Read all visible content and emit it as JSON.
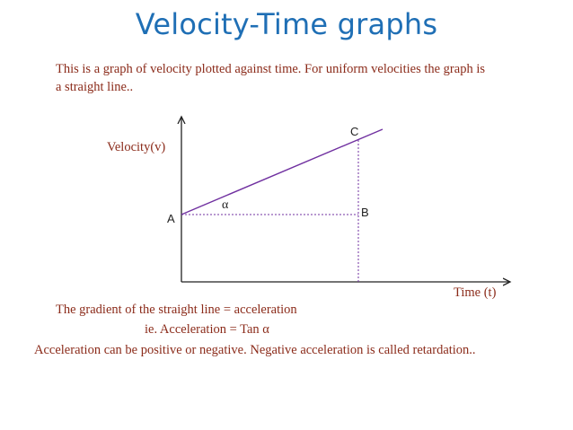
{
  "slide": {
    "title": "Velocity-Time graphs",
    "intro_line1": "This is a graph of velocity plotted against time. For uniform velocities  the graph is",
    "intro_line2": "a  straight line..",
    "gradient_text": "The gradient of the straight line  =  acceleration",
    "ie_text": "ie.  Acceleration =  Tan α",
    "footer_text": "Acceleration  can be positive or negative. Negative  acceleration is called   retardation.."
  },
  "graph": {
    "y_axis_label": "Velocity(v)",
    "x_axis_label": "Time (t)",
    "point_a": "A",
    "point_b": "B",
    "point_c": "C",
    "angle_symbol": "α",
    "line_color": "#7030a0",
    "axis_color": "#222222"
  },
  "colors": {
    "title": "#1f6fb5",
    "text": "#8b2b1a"
  }
}
